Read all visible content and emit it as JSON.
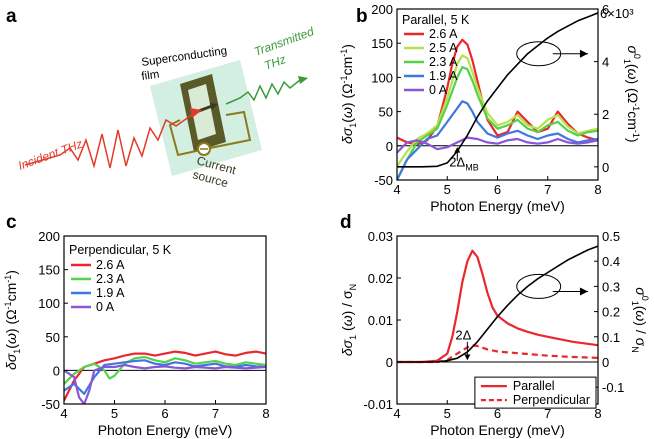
{
  "colors": {
    "red": "#e8282e",
    "yellow_green": "#b8e04a",
    "green": "#55d24a",
    "blue": "#3f78e0",
    "purple": "#8a55d6",
    "black": "#000000",
    "device_frame": "#8a7a1a",
    "film": "#5a5a28",
    "thz_red": "#e23a2a",
    "thz_green": "#3a9a3a"
  },
  "schematic": {
    "panel_label": "a",
    "incident": "Incident THz",
    "transmitted_1": "Transmitted",
    "transmitted_2": "THz",
    "film_1": "Superconducting",
    "film_2": "film",
    "current_1": "Current",
    "current_2": "source"
  },
  "chart_data": [
    {
      "panel": "b",
      "type": "line",
      "legend_title": "Parallel, 5 K",
      "xlabel": "Photon Energy (meV)",
      "ylabel": "δσ1(ω) (Ω⁻¹cm⁻¹)",
      "ylabel_right": "σ1⁰(ω) (Ω⁻¹cm⁻¹)",
      "xlim": [
        4,
        8
      ],
      "ylim": [
        -50,
        200
      ],
      "ylim_right": [
        -0.5,
        6
      ],
      "right_multiplier": "×10³",
      "xticks": [
        "4",
        "5",
        "6",
        "7",
        "8"
      ],
      "yticks": [
        "-50",
        "0",
        "50",
        "100",
        "150",
        "200"
      ],
      "yticks_right": [
        "0",
        "2",
        "4",
        "6"
      ],
      "annotation": "2Δ",
      "annotation_sub": "MB",
      "series": [
        {
          "name": "2.6 A",
          "color": "#e8282e",
          "x": [
            4,
            4.2,
            4.4,
            4.6,
            4.8,
            5.0,
            5.1,
            5.2,
            5.3,
            5.4,
            5.5,
            5.6,
            5.7,
            5.8,
            6.0,
            6.2,
            6.4,
            6.6,
            6.8,
            7.0,
            7.2,
            7.4,
            7.6,
            7.8,
            8.0
          ],
          "y": [
            12,
            5,
            2,
            8,
            28,
            85,
            120,
            145,
            155,
            148,
            125,
            95,
            65,
            38,
            15,
            20,
            50,
            35,
            20,
            25,
            50,
            32,
            18,
            12,
            8
          ]
        },
        {
          "name": "2.5 A",
          "color": "#b8e04a",
          "x": [
            4,
            4.2,
            4.4,
            4.6,
            4.8,
            5.0,
            5.2,
            5.3,
            5.4,
            5.5,
            5.6,
            5.8,
            6.0,
            6.2,
            6.4,
            6.6,
            6.8,
            7.0,
            7.2,
            7.4,
            7.6,
            7.8,
            8.0
          ],
          "y": [
            -30,
            -8,
            10,
            18,
            30,
            70,
            120,
            132,
            128,
            108,
            85,
            48,
            30,
            35,
            45,
            30,
            25,
            38,
            45,
            28,
            18,
            22,
            25
          ]
        },
        {
          "name": "2.3 A",
          "color": "#55d24a",
          "x": [
            4,
            4.2,
            4.4,
            4.6,
            4.8,
            5.0,
            5.2,
            5.3,
            5.4,
            5.5,
            5.6,
            5.8,
            6.0,
            6.2,
            6.4,
            6.6,
            6.8,
            7.0,
            7.2,
            7.4,
            7.6,
            7.8,
            8.0
          ],
          "y": [
            -50,
            -20,
            5,
            15,
            25,
            60,
            100,
            115,
            112,
            95,
            75,
            40,
            25,
            30,
            38,
            25,
            20,
            30,
            35,
            22,
            15,
            20,
            22
          ]
        },
        {
          "name": "1.9 A",
          "color": "#3f78e0",
          "x": [
            4,
            4.2,
            4.4,
            4.6,
            4.8,
            5.0,
            5.2,
            5.3,
            5.4,
            5.5,
            5.6,
            5.8,
            6.0,
            6.2,
            6.4,
            6.6,
            6.8,
            7.0,
            7.2,
            7.4,
            7.6,
            7.8,
            8.0
          ],
          "y": [
            -50,
            -20,
            -5,
            10,
            15,
            35,
            55,
            65,
            62,
            50,
            35,
            18,
            12,
            18,
            22,
            15,
            10,
            15,
            18,
            10,
            5,
            8,
            10
          ]
        },
        {
          "name": "0 A",
          "color": "#8a55d6",
          "x": [
            4,
            4.2,
            4.4,
            4.6,
            4.8,
            5.0,
            5.2,
            5.4,
            5.6,
            5.8,
            6.0,
            6.2,
            6.4,
            6.6,
            6.8,
            7.0,
            7.2,
            7.4,
            7.6,
            7.8,
            8.0
          ],
          "y": [
            -10,
            5,
            8,
            3,
            -5,
            -2,
            5,
            12,
            10,
            5,
            3,
            8,
            10,
            5,
            3,
            5,
            10,
            5,
            3,
            5,
            8
          ]
        },
        {
          "name": "σ1⁰",
          "color": "#000000",
          "axis": "right",
          "x": [
            4,
            4.5,
            4.8,
            5.0,
            5.2,
            5.4,
            5.6,
            5.8,
            6.0,
            6.2,
            6.4,
            6.6,
            6.8,
            7.0,
            7.2,
            7.4,
            7.6,
            7.8,
            8.0
          ],
          "y": [
            0,
            0,
            0.02,
            0.15,
            0.6,
            1.2,
            1.9,
            2.5,
            3.0,
            3.5,
            3.9,
            4.3,
            4.6,
            4.9,
            5.15,
            5.35,
            5.55,
            5.7,
            5.85
          ]
        }
      ]
    },
    {
      "panel": "c",
      "type": "line",
      "legend_title": "Perpendicular, 5 K",
      "xlabel": "Photon Energy (meV)",
      "ylabel": "δσ1(ω) (Ω⁻¹cm⁻¹)",
      "xlim": [
        4,
        8
      ],
      "ylim": [
        -50,
        200
      ],
      "xticks": [
        "4",
        "5",
        "6",
        "7",
        "8"
      ],
      "yticks": [
        "-50",
        "0",
        "50",
        "100",
        "150",
        "200"
      ],
      "series": [
        {
          "name": "2.6 A",
          "color": "#e8282e",
          "x": [
            4,
            4.1,
            4.2,
            4.4,
            4.6,
            4.8,
            5.0,
            5.2,
            5.4,
            5.6,
            5.8,
            6.0,
            6.2,
            6.4,
            6.6,
            6.8,
            7.0,
            7.2,
            7.4,
            7.6,
            7.8,
            8.0
          ],
          "y": [
            -45,
            -30,
            -15,
            5,
            10,
            15,
            18,
            22,
            25,
            25,
            22,
            25,
            28,
            26,
            22,
            25,
            28,
            24,
            22,
            26,
            28,
            25
          ]
        },
        {
          "name": "2.3 A",
          "color": "#55d24a",
          "x": [
            4,
            4.2,
            4.4,
            4.6,
            4.8,
            4.9,
            5.0,
            5.2,
            5.4,
            5.6,
            5.8,
            6.0,
            6.2,
            6.4,
            6.6,
            6.8,
            7.0,
            7.2,
            7.4,
            7.6,
            7.8,
            8.0
          ],
          "y": [
            -20,
            -5,
            5,
            10,
            0,
            -12,
            -8,
            10,
            18,
            20,
            15,
            12,
            18,
            15,
            10,
            12,
            14,
            10,
            8,
            12,
            10,
            8
          ]
        },
        {
          "name": "1.9 A",
          "color": "#3f78e0",
          "x": [
            4,
            4.2,
            4.4,
            4.6,
            4.8,
            5.0,
            5.2,
            5.4,
            5.6,
            5.8,
            6.0,
            6.2,
            6.4,
            6.6,
            6.8,
            7.0,
            7.2,
            7.4,
            7.6,
            7.8,
            8.0
          ],
          "y": [
            -30,
            -20,
            -35,
            -10,
            8,
            10,
            12,
            14,
            15,
            10,
            8,
            12,
            10,
            6,
            8,
            10,
            6,
            5,
            8,
            6,
            5
          ]
        },
        {
          "name": "0 A",
          "color": "#8a55d6",
          "x": [
            4,
            4.2,
            4.3,
            4.4,
            4.5,
            4.6,
            4.8,
            5.0,
            5.2,
            5.4,
            5.6,
            5.8,
            6.0,
            6.2,
            6.4,
            6.6,
            6.8,
            7.0,
            7.2,
            7.4,
            7.6,
            7.8,
            8.0
          ],
          "y": [
            0,
            -10,
            -40,
            -50,
            -30,
            0,
            5,
            5,
            8,
            5,
            3,
            5,
            6,
            4,
            3,
            5,
            4,
            3,
            5,
            4,
            3,
            4,
            5
          ]
        }
      ]
    },
    {
      "panel": "d",
      "type": "line",
      "xlabel": "Photon Energy (meV)",
      "ylabel": "δσ1(ω) / σN",
      "ylabel_right": "σ1⁰(ω) / σN",
      "xlim": [
        4,
        8
      ],
      "ylim": [
        -0.01,
        0.03
      ],
      "ylim_right": [
        -0.1666667,
        0.5
      ],
      "xticks": [
        "4",
        "5",
        "6",
        "7",
        "8"
      ],
      "yticks": [
        "-0.01",
        "0",
        "0.01",
        "0.02",
        "0.03"
      ],
      "yticks_right": [
        "-0.1",
        "0",
        "0.1",
        "0.2",
        "0.3",
        "0.4",
        "0.5"
      ],
      "annotation": "2Δ",
      "series": [
        {
          "name": "Parallel",
          "color": "#e8282e",
          "x": [
            4,
            4.5,
            4.8,
            5.0,
            5.1,
            5.2,
            5.3,
            5.4,
            5.5,
            5.6,
            5.7,
            5.8,
            5.9,
            6.0,
            6.2,
            6.4,
            6.6,
            6.8,
            7.0,
            7.5,
            8.0
          ],
          "y": [
            0,
            0,
            0.0003,
            0.002,
            0.006,
            0.012,
            0.019,
            0.024,
            0.0265,
            0.025,
            0.021,
            0.0165,
            0.013,
            0.011,
            0.0092,
            0.008,
            0.0072,
            0.0065,
            0.006,
            0.0048,
            0.004
          ]
        },
        {
          "name": "Perpendicular",
          "color": "#e8282e",
          "dashed": true,
          "x": [
            4,
            4.8,
            5.0,
            5.2,
            5.4,
            5.5,
            5.6,
            5.8,
            6.0,
            6.5,
            7.0,
            7.5,
            8.0
          ],
          "y": [
            0,
            0,
            0.0005,
            0.002,
            0.0035,
            0.004,
            0.0038,
            0.003,
            0.0025,
            0.002,
            0.0015,
            0.0012,
            0.001
          ]
        },
        {
          "name": "σ1⁰",
          "color": "#000000",
          "axis": "right",
          "x": [
            4,
            4.8,
            5.0,
            5.2,
            5.4,
            5.6,
            5.8,
            6.0,
            6.2,
            6.4,
            6.6,
            6.8,
            7.0,
            7.2,
            7.4,
            7.6,
            7.8,
            8.0
          ],
          "y": [
            0,
            0,
            0.005,
            0.015,
            0.04,
            0.08,
            0.13,
            0.18,
            0.225,
            0.265,
            0.3,
            0.33,
            0.355,
            0.38,
            0.405,
            0.425,
            0.445,
            0.46
          ]
        }
      ]
    }
  ]
}
